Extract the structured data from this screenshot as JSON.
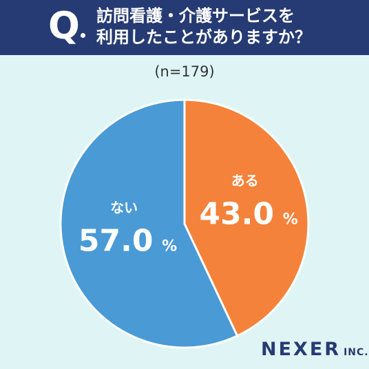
{
  "header": {
    "q_label": "Q",
    "question_line1": "訪問看護・介護サービスを",
    "question_line2": "利用したことがありますか？"
  },
  "sample_label": "(n=179)",
  "brand": {
    "name": "NEXER",
    "suffix": "INC."
  },
  "chart_data": {
    "type": "pie",
    "title": "訪問看護・介護サービスを利用したことがありますか？",
    "categories": [
      "ある",
      "ない"
    ],
    "values": [
      43.0,
      57.0
    ],
    "unit": "%",
    "value_labels": [
      "43.0",
      "57.0"
    ],
    "colors": [
      "#f4823a",
      "#4a9ad6"
    ],
    "start": "12 o'clock",
    "direction": "clockwise"
  }
}
